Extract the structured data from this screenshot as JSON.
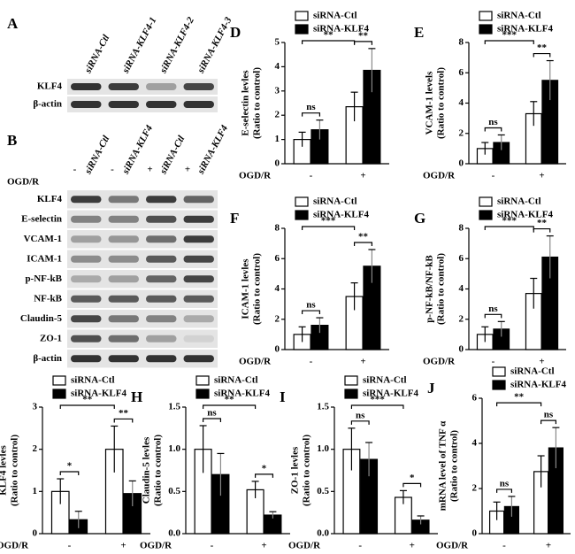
{
  "blots": [
    {
      "panel": "A",
      "lanes": [
        "siRNA-Ctl",
        "siRNA-KLF4-1",
        "siRNA-KLF4-2",
        "siRNA-KLF4-3"
      ],
      "rows": [
        "KLF4",
        "β-actin"
      ]
    },
    {
      "panel": "B",
      "condition": "OGD/R",
      "signs": [
        "-",
        "-",
        "+",
        "+"
      ],
      "lanes": [
        "siRNA-Ctl",
        "siRNA-KLF4",
        "siRNA-Ctl",
        "siRNA-KLF4"
      ],
      "rows": [
        "KLF4",
        "E-selectin",
        "VCAM-1",
        "ICAM-1",
        "p-NF-kB",
        "NF-kB",
        "Claudin-5",
        "ZO-1",
        "β-actin"
      ]
    }
  ],
  "chart_data": [
    {
      "type": "bar",
      "panel": "D",
      "ylabel": [
        "E-selectin levles",
        "(Ratio to control)"
      ],
      "xlabel": "OGD/R",
      "categories": [
        "-",
        "+"
      ],
      "series": [
        {
          "name": "siRNA-Ctl",
          "color": "#ffffff",
          "values": [
            1.0,
            2.35
          ],
          "errors": [
            0.3,
            0.6
          ]
        },
        {
          "name": "siRNA-KLF4",
          "color": "#000000",
          "values": [
            1.4,
            3.85
          ],
          "errors": [
            0.4,
            0.9
          ]
        }
      ],
      "ylim": [
        0,
        5
      ],
      "yticks": [
        0,
        1,
        2,
        3,
        4,
        5
      ],
      "within": [
        "ns",
        "**"
      ],
      "across": "**"
    },
    {
      "type": "bar",
      "panel": "E",
      "ylabel": [
        "VCAM-1 levels",
        "(Ratio to control)"
      ],
      "xlabel": "OGD/R",
      "categories": [
        "-",
        "+"
      ],
      "series": [
        {
          "name": "siRNA-Ctl",
          "color": "#ffffff",
          "values": [
            1.0,
            3.3
          ],
          "errors": [
            0.4,
            0.8
          ]
        },
        {
          "name": "siRNA-KLF4",
          "color": "#000000",
          "values": [
            1.4,
            5.5
          ],
          "errors": [
            0.5,
            1.3
          ]
        }
      ],
      "ylim": [
        0,
        8
      ],
      "yticks": [
        0,
        2,
        4,
        6,
        8
      ],
      "within": [
        "ns",
        "**"
      ],
      "across": "***"
    },
    {
      "type": "bar",
      "panel": "F",
      "ylabel": [
        "ICAM-1 levles",
        "(Ratio to control)"
      ],
      "xlabel": "OGD/R",
      "categories": [
        "-",
        "+"
      ],
      "series": [
        {
          "name": "siRNA-Ctl",
          "color": "#ffffff",
          "values": [
            1.0,
            3.5
          ],
          "errors": [
            0.5,
            0.9
          ]
        },
        {
          "name": "siRNA-KLF4",
          "color": "#000000",
          "values": [
            1.6,
            5.5
          ],
          "errors": [
            0.5,
            1.1
          ]
        }
      ],
      "ylim": [
        0,
        8
      ],
      "yticks": [
        0,
        2,
        4,
        6,
        8
      ],
      "within": [
        "ns",
        "**"
      ],
      "across": "***"
    },
    {
      "type": "bar",
      "panel": "G",
      "ylabel": [
        "p-NF-kB/NF-kB",
        "(Ratio to control)"
      ],
      "xlabel": "OGD/R",
      "categories": [
        "-",
        "+"
      ],
      "series": [
        {
          "name": "siRNA-Ctl",
          "color": "#ffffff",
          "values": [
            1.0,
            3.7
          ],
          "errors": [
            0.5,
            1.0
          ]
        },
        {
          "name": "siRNA-KLF4",
          "color": "#000000",
          "values": [
            1.35,
            6.1
          ],
          "errors": [
            0.5,
            1.4
          ]
        }
      ],
      "ylim": [
        0,
        8
      ],
      "yticks": [
        0,
        2,
        4,
        6,
        8
      ],
      "within": [
        "ns",
        "**"
      ],
      "across": "***"
    },
    {
      "type": "bar",
      "panel": "C",
      "ylabel": [
        "KLF4 levles",
        "(Ratio to control)"
      ],
      "xlabel": "OGD/R",
      "categories": [
        "-",
        "+"
      ],
      "series": [
        {
          "name": "siRNA-Ctl",
          "color": "#ffffff",
          "values": [
            1.0,
            2.0
          ],
          "errors": [
            0.3,
            0.55
          ]
        },
        {
          "name": "siRNA-KLF4",
          "color": "#000000",
          "values": [
            0.33,
            0.95
          ],
          "errors": [
            0.2,
            0.3
          ]
        }
      ],
      "ylim": [
        0,
        3
      ],
      "yticks": [
        0,
        1,
        2,
        3
      ],
      "within": [
        "*",
        "**"
      ],
      "across": "**"
    },
    {
      "type": "bar",
      "panel": "H",
      "ylabel": [
        "Claudin-5 levles",
        "(Ratio to control)"
      ],
      "xlabel": "OGD/R",
      "categories": [
        "-",
        "+"
      ],
      "series": [
        {
          "name": "siRNA-Ctl",
          "color": "#ffffff",
          "values": [
            1.0,
            0.52
          ],
          "errors": [
            0.28,
            0.1
          ]
        },
        {
          "name": "siRNA-KLF4",
          "color": "#000000",
          "values": [
            0.7,
            0.22
          ],
          "errors": [
            0.25,
            0.04
          ]
        }
      ],
      "ylim": [
        0,
        1.5
      ],
      "yticks": [
        {
          "value": 0,
          "label": "0.0"
        },
        0.5,
        {
          "value": 1,
          "label": "1.0"
        },
        1.5
      ],
      "within": [
        "ns",
        "*"
      ],
      "across": "**"
    },
    {
      "type": "bar",
      "panel": "I",
      "ylabel": [
        "ZO-1 levles",
        "(Ratio to control)"
      ],
      "xlabel": "OGD/R",
      "categories": [
        "-",
        "+"
      ],
      "series": [
        {
          "name": "siRNA-Ctl",
          "color": "#ffffff",
          "values": [
            1.0,
            0.43
          ],
          "errors": [
            0.25,
            0.08
          ]
        },
        {
          "name": "siRNA-KLF4",
          "color": "#000000",
          "values": [
            0.88,
            0.16
          ],
          "errors": [
            0.2,
            0.05
          ]
        }
      ],
      "ylim": [
        0,
        1.5
      ],
      "yticks": [
        {
          "value": 0,
          "label": "0.0"
        },
        0.5,
        {
          "value": 1,
          "label": "1.0"
        },
        1.5
      ],
      "within": [
        "ns",
        "*"
      ],
      "across": "***"
    },
    {
      "type": "bar",
      "panel": "J",
      "ylabel": [
        "mRNA level of TNF α",
        "(Ratio to control)"
      ],
      "xlabel": "OGD/R",
      "categories": [
        "-",
        "+"
      ],
      "series": [
        {
          "name": "siRNA-Ctl",
          "color": "#ffffff",
          "values": [
            1.0,
            2.75
          ],
          "errors": [
            0.4,
            0.7
          ]
        },
        {
          "name": "siRNA-KLF4",
          "color": "#000000",
          "values": [
            1.2,
            3.8
          ],
          "errors": [
            0.45,
            0.9
          ]
        }
      ],
      "ylim": [
        0,
        6
      ],
      "yticks": [
        0,
        2,
        4,
        6
      ],
      "within": [
        "ns",
        "ns"
      ],
      "across": "**"
    }
  ]
}
